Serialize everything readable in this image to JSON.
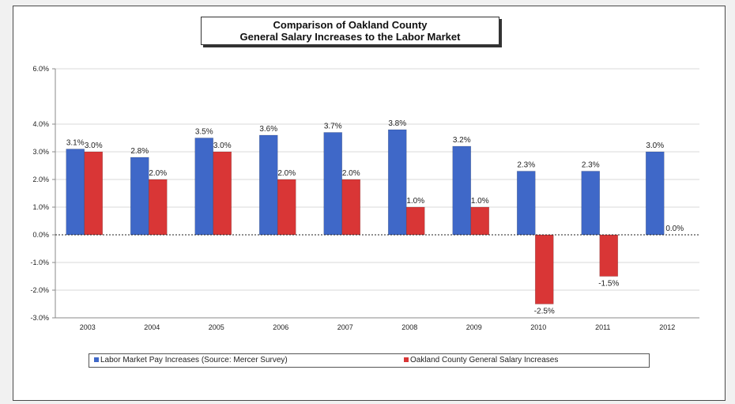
{
  "chart_data": {
    "type": "bar",
    "title": "Comparison of Oakland County\nGeneral Salary Increases to the Labor Market",
    "title_lines": [
      "Comparison of Oakland County",
      "General Salary Increases to the Labor Market"
    ],
    "categories": [
      "2003",
      "2004",
      "2005",
      "2006",
      "2007",
      "2008",
      "2009",
      "2010",
      "2011",
      "2012"
    ],
    "series": [
      {
        "name": "Labor Market Pay Increases (Source: Mercer Survey)",
        "values": [
          3.1,
          2.8,
          3.5,
          3.6,
          3.7,
          3.8,
          3.2,
          2.3,
          2.3,
          3.0
        ],
        "labels": [
          "3.1%",
          "2.8%",
          "3.5%",
          "3.6%",
          "3.7%",
          "3.8%",
          "3.2%",
          "2.3%",
          "2.3%",
          "3.0%"
        ],
        "color": "#3f68c8"
      },
      {
        "name": "Oakland County General Salary Increases",
        "values": [
          3.0,
          2.0,
          3.0,
          2.0,
          2.0,
          1.0,
          1.0,
          -2.5,
          -1.5,
          0.0
        ],
        "labels": [
          "3.0%",
          "2.0%",
          "3.0%",
          "2.0%",
          "2.0%",
          "1.0%",
          "1.0%",
          "-2.5%",
          "-1.5%",
          "0.0%"
        ],
        "color": "#d93636"
      }
    ],
    "ylim": [
      -3.0,
      6.0
    ],
    "yticks": [
      6.0,
      4.0,
      3.0,
      2.0,
      1.0,
      0.0,
      -1.0,
      -2.0,
      -3.0
    ],
    "ytick_labels": [
      "6.0%",
      "4.0%",
      "3.0%",
      "2.0%",
      "1.0%",
      "0.0%",
      "-1.0%",
      "-2.0%",
      "-3.0%"
    ],
    "xlabel": "",
    "ylabel": "",
    "grid": true,
    "legend_position": "bottom",
    "colors": {
      "frame_border": "#4a4a4a",
      "gridline": "#d9d9d9",
      "axis": "#8a8a8a",
      "text": "#222222"
    }
  }
}
